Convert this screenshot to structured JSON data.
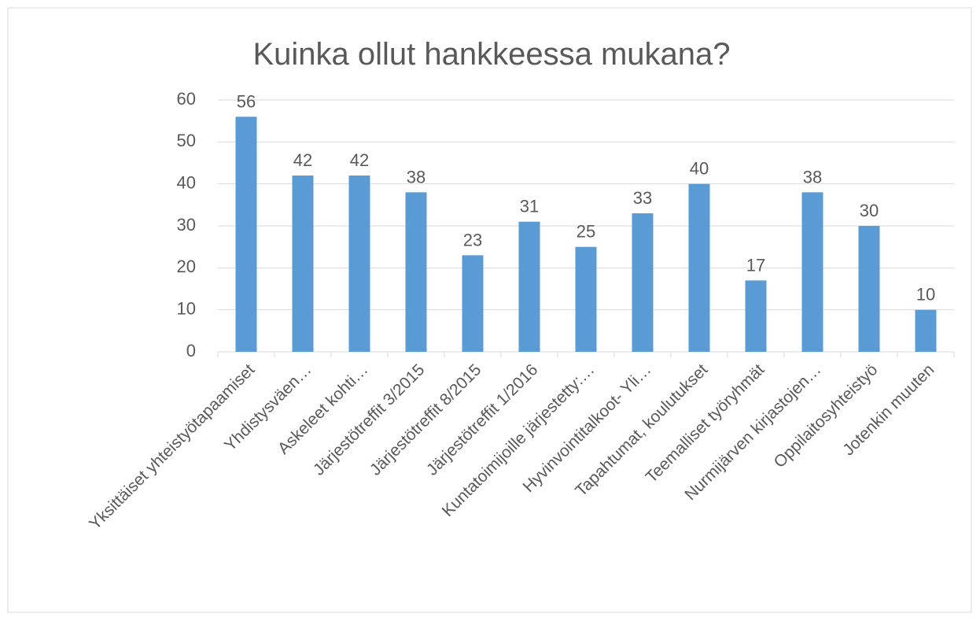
{
  "chart_data": {
    "type": "bar",
    "title": "Kuinka ollut hankkeessa mukana?",
    "categories": [
      "Yksittäiset yhteistyötapaamiset",
      "Yhdistysväen…",
      "Askeleet kohti…",
      "Järjestötreffit 3/2015",
      "Järjestötreffit 8/2015",
      "Järjestötreffit 1/2016",
      "Kuntatoimijoille järjestetty:…",
      "Hyvinvointitalkoot- Yli…",
      "Tapahtumat, koulutukset",
      "Teemalliset työryhmät",
      "Nurmijärven kirjastojen…",
      "Oppilaitosyhteistyö",
      "Jotenkin muuten"
    ],
    "values": [
      56,
      42,
      42,
      38,
      23,
      31,
      25,
      33,
      40,
      17,
      38,
      30,
      10
    ],
    "color": "#5b9bd5",
    "ylim": [
      0,
      60
    ],
    "yticks": [
      0,
      10,
      20,
      30,
      40,
      50,
      60
    ],
    "grid": true
  }
}
